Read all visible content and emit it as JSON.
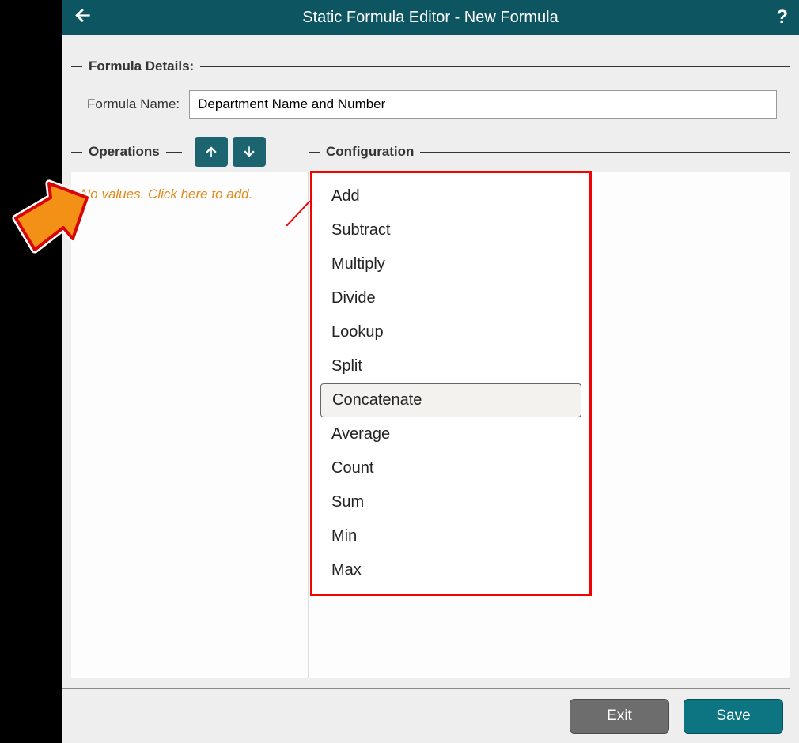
{
  "colors": {
    "header_bg": "#0d5661",
    "header_text": "#ffffff",
    "page_bg": "#eeeeee",
    "panel_bg": "#fdfdfd",
    "iconbtn_bg": "#1b6470",
    "empty_text": "#e08a1a",
    "dropdown_border": "#f00403",
    "highlight_bg": "#f4f2ef",
    "exit_bg": "#6d6d6d",
    "save_bg": "#0d7482",
    "pointer_fill": "#f39016",
    "pointer_stroke": "#db0404"
  },
  "header": {
    "title": "Static Formula Editor - New Formula",
    "help": "?"
  },
  "details": {
    "group_label": "Formula Details:",
    "name_label": "Formula Name:",
    "name_value": "Department Name and Number"
  },
  "operations": {
    "label": "Operations",
    "empty_message": "No values. Click here to add."
  },
  "configuration": {
    "label": "Configuration"
  },
  "dropdown": {
    "items": [
      {
        "label": "Add",
        "highlight": false
      },
      {
        "label": "Subtract",
        "highlight": false
      },
      {
        "label": "Multiply",
        "highlight": false
      },
      {
        "label": "Divide",
        "highlight": false
      },
      {
        "label": "Lookup",
        "highlight": false
      },
      {
        "label": "Split",
        "highlight": false
      },
      {
        "label": "Concatenate",
        "highlight": true
      },
      {
        "label": "Average",
        "highlight": false
      },
      {
        "label": "Count",
        "highlight": false
      },
      {
        "label": "Sum",
        "highlight": false
      },
      {
        "label": "Min",
        "highlight": false
      },
      {
        "label": "Max",
        "highlight": false
      }
    ]
  },
  "footer": {
    "exit": "Exit",
    "save": "Save"
  }
}
